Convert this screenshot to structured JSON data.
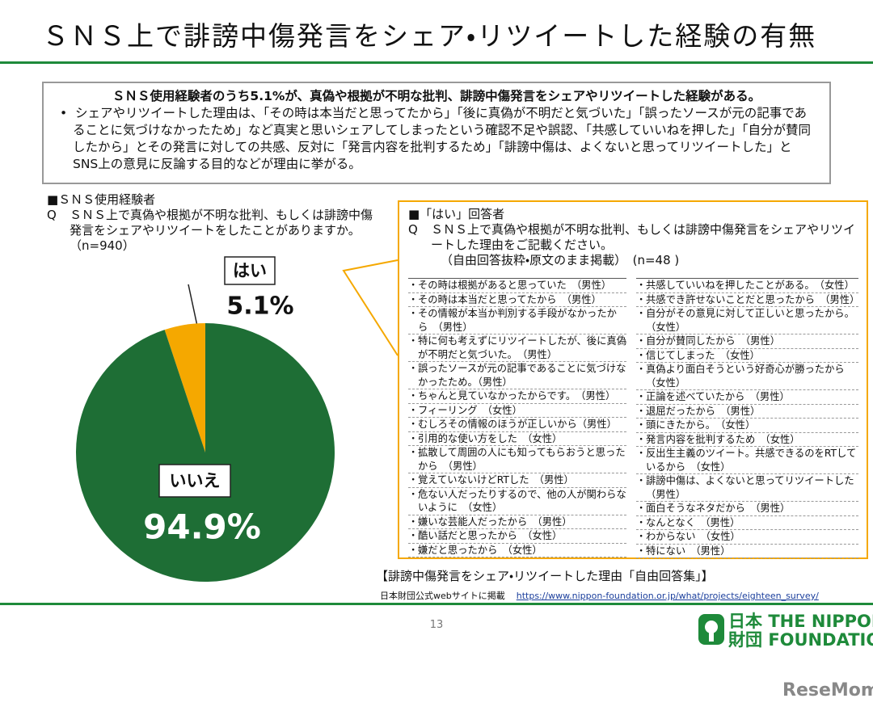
{
  "title": "ＳＮＳ上で誹謗中傷発言をシェア・リツイートした経験の有無",
  "summary": {
    "headline": "ＳＮＳ使用経験者のうち5.1%が、真偽や根拠が不明な批判、誹謗中傷発言をシェアやリツイートした経験がある。",
    "bullet": "シェアやリツイートした理由は、「その時は本当だと思ってたから」「後に真偽が不明だと気づいた」「誤ったソースが元の記事であることに気づけなかったため」など真実と思いシェアしてしまったという確認不足や誤認、「共感していいねを押した」「自分が賛同したから」とその発言に対しての共感、反対に「発言内容を批判するため」「誹謗中傷は、よくないと思ってリツイートした」とSNS上の意見に反論する目的などが理由に挙がる。"
  },
  "question": {
    "group": "■ＳＮＳ使用経験者",
    "label": "Q",
    "text": "ＳＮＳ上で真偽や根拠が不明な批判、もしくは誹謗中傷発言をシェアやリツイートをしたことがありますか。（n=940）"
  },
  "chart_data": {
    "type": "pie",
    "categories": [
      "はい",
      "いいえ"
    ],
    "values": [
      5.1,
      94.9
    ],
    "value_labels": [
      "5.1%",
      "94.9%"
    ],
    "colors": [
      "#f5a800",
      "#1e6e35"
    ]
  },
  "responses": {
    "group": "■「はい」回答者",
    "label": "Q",
    "question": "ＳＮＳ上で真偽や根拠が不明な批判、もしくは誹謗中傷発言をシェアやリツイートした理由をご記載ください。",
    "note": "（自由回答抜粋・原文のまま掲載）　(n=48 )",
    "left": [
      "その時は根拠があると思っていた　（男性）",
      "その時は本当だと思ってたから　（男性）",
      "その情報が本当か判別する手段がなかったから　（男性）",
      "特に何も考えずにリツイートしたが、後に真偽が不明だと気づいた。　（男性）",
      "誤ったソースが元の記事であることに気づけなかったため。（男性）",
      "ちゃんと見ていなかったからです。　（男性）",
      "フィーリング　（女性）",
      "むしろその情報のほうが正しいから（男性）",
      "引用的な使い方をした　（女性）",
      "拡散して周囲の人にも知ってもらおうと思ったから　（男性）",
      "覚えていないけどRTした　（男性）",
      "危ない人だったりするので、他の人が関わらないように　（女性）",
      "嫌いな芸能人だったから　（男性）",
      "酷い話だと思ったから　（女性）",
      "嫌だと思ったから　（女性）"
    ],
    "right": [
      "共感していいねを押したことがある。　（女性）",
      "共感でき許せないことだと思ったから　（男性）",
      "自分がその意見に対して正しいと思ったから。（女性）",
      "自分が賛同したから　（男性）",
      "信じてしまった　（女性）",
      "真偽より面白そうという好奇心が勝ったから　（女性）",
      "正論を述べていたから　（男性）",
      "退屈だったから　（男性）",
      "頭にきたから。　（女性）",
      "発言内容を批判するため　（女性）",
      "反出生主義のツイート。共感できるのをRTしているから　（女性）",
      "誹謗中傷は、よくないと思ってリツイートした（男性）",
      "面白そうなネタだから　（男性）",
      "なんとなく　（男性）",
      "わからない　（女性）",
      "特にない　（男性）"
    ]
  },
  "caption": "【誹謗中傷発言をシェア・リツイートした理由「自由回答集」】",
  "source": {
    "text": "日本財団公式webサイトに掲載",
    "url": "https://www.nippon-foundation.or.jp/what/projects/eighteen_survey/"
  },
  "page_number": 13,
  "logo": {
    "jp1": "日本",
    "en1": "THE NIPPON",
    "jp2": "財団",
    "en2": "FOUNDATION"
  },
  "watermark": "ReseMom"
}
